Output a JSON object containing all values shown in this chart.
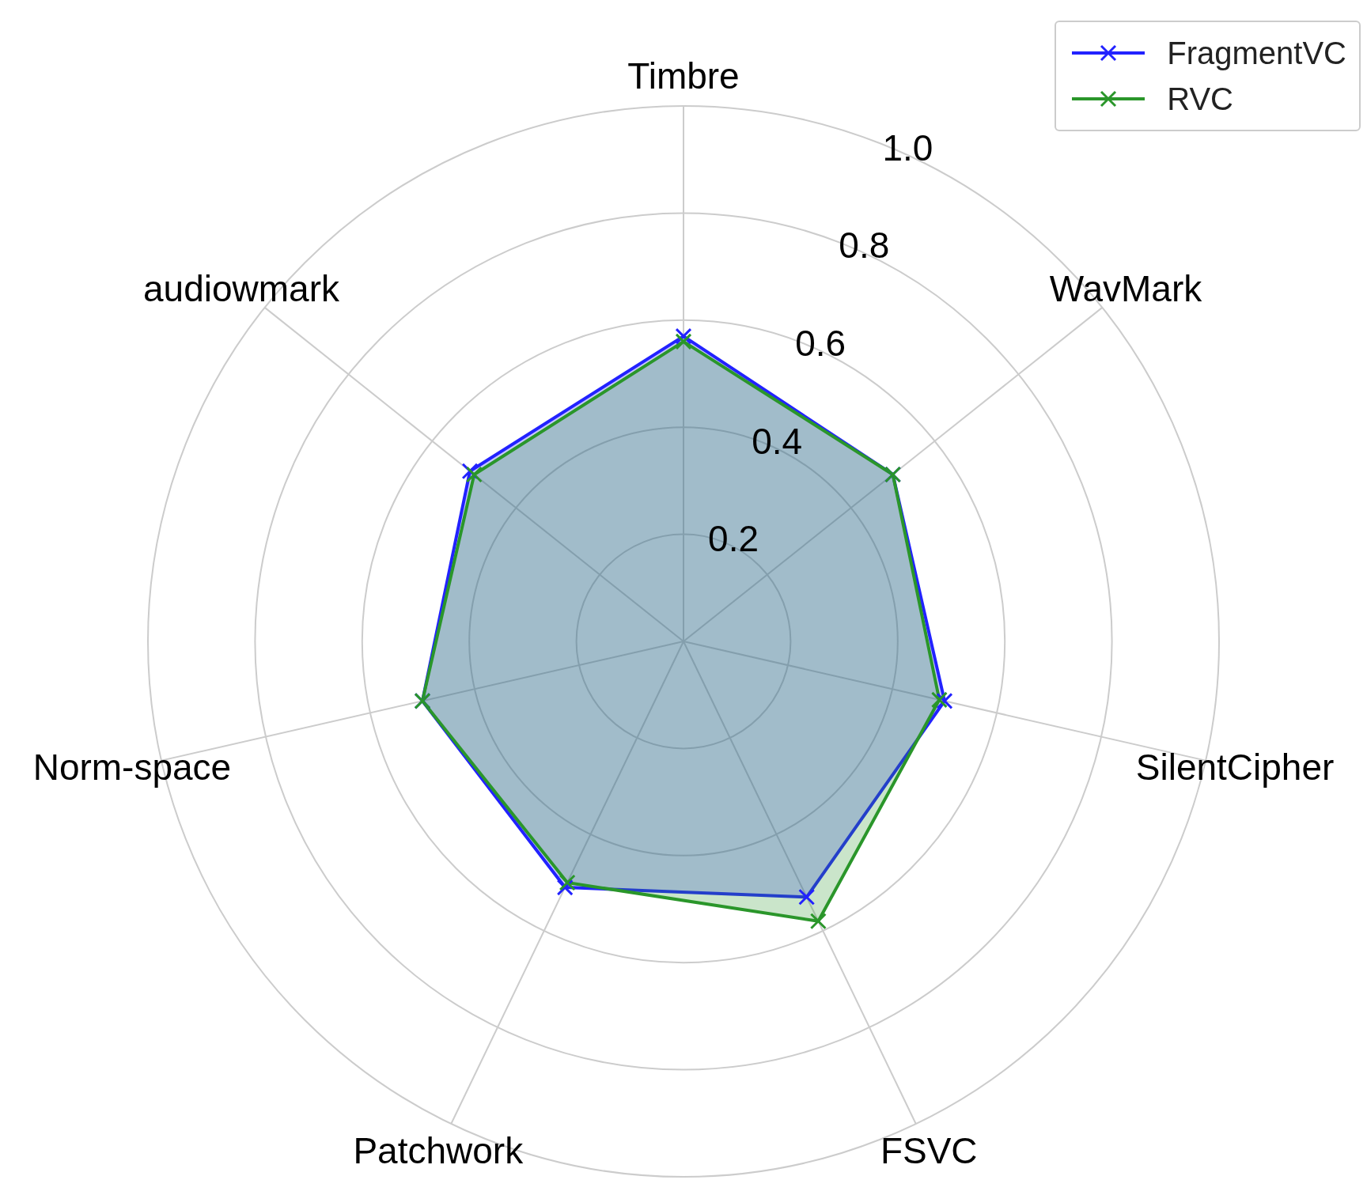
{
  "chart_data": {
    "type": "radar",
    "categories": [
      "Timbre",
      "WavMark",
      "SilentCipher",
      "FSVC",
      "Patchwork",
      "Norm-space",
      "audiowmark"
    ],
    "series": [
      {
        "name": "FragmentVC",
        "color": "#2222ff",
        "values": [
          0.57,
          0.5,
          0.5,
          0.53,
          0.51,
          0.5,
          0.51
        ]
      },
      {
        "name": "RVC",
        "color": "#2a962a",
        "values": [
          0.56,
          0.5,
          0.49,
          0.58,
          0.5,
          0.5,
          0.5
        ]
      }
    ],
    "ylim": [
      0,
      1
    ],
    "yticks": [
      0.2,
      0.4,
      0.6,
      0.8,
      {
        "value": 1,
        "label": "1.0"
      }
    ],
    "grid": true,
    "legend": "top right",
    "marker": "cross",
    "line_style": "solid"
  }
}
